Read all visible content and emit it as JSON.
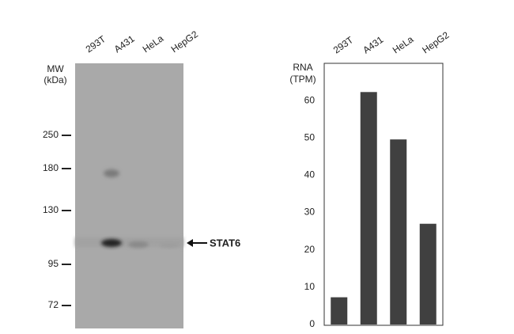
{
  "blot": {
    "mw_label": "MW",
    "mw_unit": "(kDa)",
    "lanes": [
      "293T",
      "A431",
      "HeLa",
      "HepG2"
    ],
    "markers": [
      250,
      180,
      130,
      95,
      72
    ],
    "target": "STAT6"
  },
  "chart_data": {
    "type": "bar",
    "ylabel": [
      "RNA",
      "(TPM)"
    ],
    "categories": [
      "293T",
      "A431",
      "HeLa",
      "HepG2"
    ],
    "values": [
      7.3,
      62.3,
      49.6,
      27.0
    ],
    "color": "#404040",
    "ylim": [
      0,
      70
    ],
    "yticks": [
      0,
      10,
      20,
      30,
      40,
      50,
      60
    ],
    "grid": false
  }
}
